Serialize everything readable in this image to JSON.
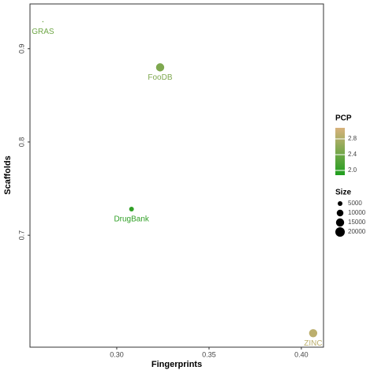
{
  "chart_data": {
    "type": "scatter",
    "xlabel": "Fingerprints",
    "ylabel": "Scaffolds",
    "xlim": [
      0.253,
      0.412
    ],
    "ylim": [
      0.58,
      0.948
    ],
    "xticks": [
      {
        "value": 0.3,
        "label": "0.30"
      },
      {
        "value": 0.35,
        "label": "0.35"
      },
      {
        "value": 0.4,
        "label": "0.40"
      }
    ],
    "yticks": [
      0.7,
      0.8,
      0.9
    ],
    "labels": [
      "GRAS",
      "FooDB",
      "DrugBank",
      "ZINC"
    ],
    "x": [
      0.26,
      0.3235,
      0.308,
      0.4064
    ],
    "y": [
      0.929,
      0.88,
      0.728,
      0.595
    ],
    "size": [
      300,
      15000,
      5000,
      15000
    ],
    "pcp": [
      2.4,
      2.5,
      2.0,
      2.9
    ],
    "color_title": "PCP",
    "color_range": [
      "#1e9e1e",
      "#d8b27c"
    ],
    "color_lim": [
      1.88,
      3.08
    ],
    "color_ticks": [
      {
        "value": 2.0,
        "label": "2.0"
      },
      2.4,
      2.8
    ],
    "size_title": "Size",
    "size_ticks": [
      5000,
      10000,
      15000,
      20000
    ]
  }
}
